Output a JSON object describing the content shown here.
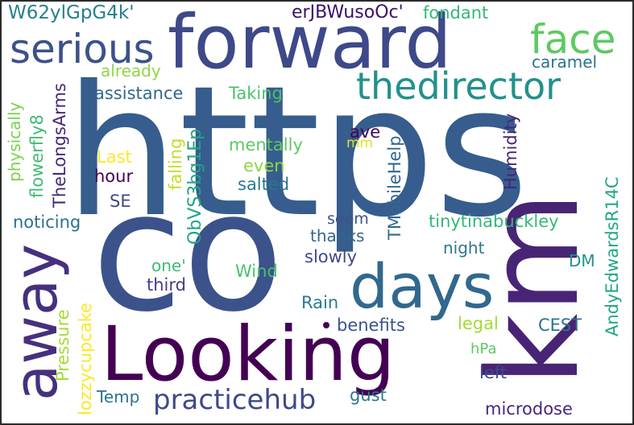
{
  "words": [
    {
      "text": "https",
      "color": "#365d8d"
    },
    {
      "text": "co",
      "color": "#3b528b"
    },
    {
      "text": "forward",
      "color": "#3e4989"
    },
    {
      "text": "Looking",
      "color": "#440154"
    },
    {
      "text": "km",
      "color": "#482475"
    },
    {
      "text": "days",
      "color": "#31688e"
    },
    {
      "text": "away",
      "color": "#46307e"
    },
    {
      "text": "serious",
      "color": "#3b528b"
    },
    {
      "text": "thedirector",
      "color": "#21918c"
    },
    {
      "text": "face",
      "color": "#5ec962"
    },
    {
      "text": "practicehub",
      "color": "#3e4a89"
    },
    {
      "text": "W62ylGpG4k'",
      "color": "#277f8e"
    },
    {
      "text": "erJBWusoOc'",
      "color": "#3b0f70"
    },
    {
      "text": "fondant",
      "color": "#35b779"
    },
    {
      "text": "caramel",
      "color": "#2c728e"
    },
    {
      "text": "already",
      "color": "#8fd744"
    },
    {
      "text": "assistance",
      "color": "#31688e"
    },
    {
      "text": "Taking",
      "color": "#4ac16d"
    },
    {
      "text": "physically",
      "color": "#7ad151"
    },
    {
      "text": "flowerfly8",
      "color": "#3fbc73"
    },
    {
      "text": "TheLongsArms",
      "color": "#482878"
    },
    {
      "text": "Last",
      "color": "#fde725"
    },
    {
      "text": "hour",
      "color": "#440154"
    },
    {
      "text": "falling",
      "color": "#c2df23"
    },
    {
      "text": "mentally",
      "color": "#5ec962"
    },
    {
      "text": "even",
      "color": "#8fd744"
    },
    {
      "text": "salted",
      "color": "#2a788e"
    },
    {
      "text": "SE",
      "color": "#3e4a89"
    },
    {
      "text": "ave",
      "color": "#440154"
    },
    {
      "text": "mm",
      "color": "#e0e31f"
    },
    {
      "text": "Humidity",
      "color": "#482475"
    },
    {
      "text": "TMobileHelp",
      "color": "#31688e"
    },
    {
      "text": "AndyEdwardsR14C",
      "color": "#22a785"
    },
    {
      "text": "noticing",
      "color": "#2c728e"
    },
    {
      "text": "ObVS3bg1Ep",
      "color": "#20a486"
    },
    {
      "text": "seem",
      "color": "#3b528b"
    },
    {
      "text": "thanks",
      "color": "#31688e"
    },
    {
      "text": "tinytinabuckley",
      "color": "#35b779"
    },
    {
      "text": "night",
      "color": "#2a788e"
    },
    {
      "text": "slowly",
      "color": "#3e4989"
    },
    {
      "text": "lozzycupcake",
      "color": "#fde725"
    },
    {
      "text": "one'",
      "color": "#3fbc73"
    },
    {
      "text": "Wind",
      "color": "#4ac16d"
    },
    {
      "text": "third",
      "color": "#433e85"
    },
    {
      "text": "DM",
      "color": "#21918c"
    },
    {
      "text": "Pressure",
      "color": "#a5db36"
    },
    {
      "text": "Rain",
      "color": "#287c8e"
    },
    {
      "text": "benefits",
      "color": "#3b528b"
    },
    {
      "text": "legal",
      "color": "#a5db36"
    },
    {
      "text": "CEST",
      "color": "#2c728e"
    },
    {
      "text": "hPa",
      "color": "#5ec962"
    },
    {
      "text": "left",
      "color": "#3e4989"
    },
    {
      "text": "Temp",
      "color": "#2c728e"
    },
    {
      "text": "gust",
      "color": "#2a788e"
    },
    {
      "text": "microdose",
      "color": "#482878"
    }
  ]
}
